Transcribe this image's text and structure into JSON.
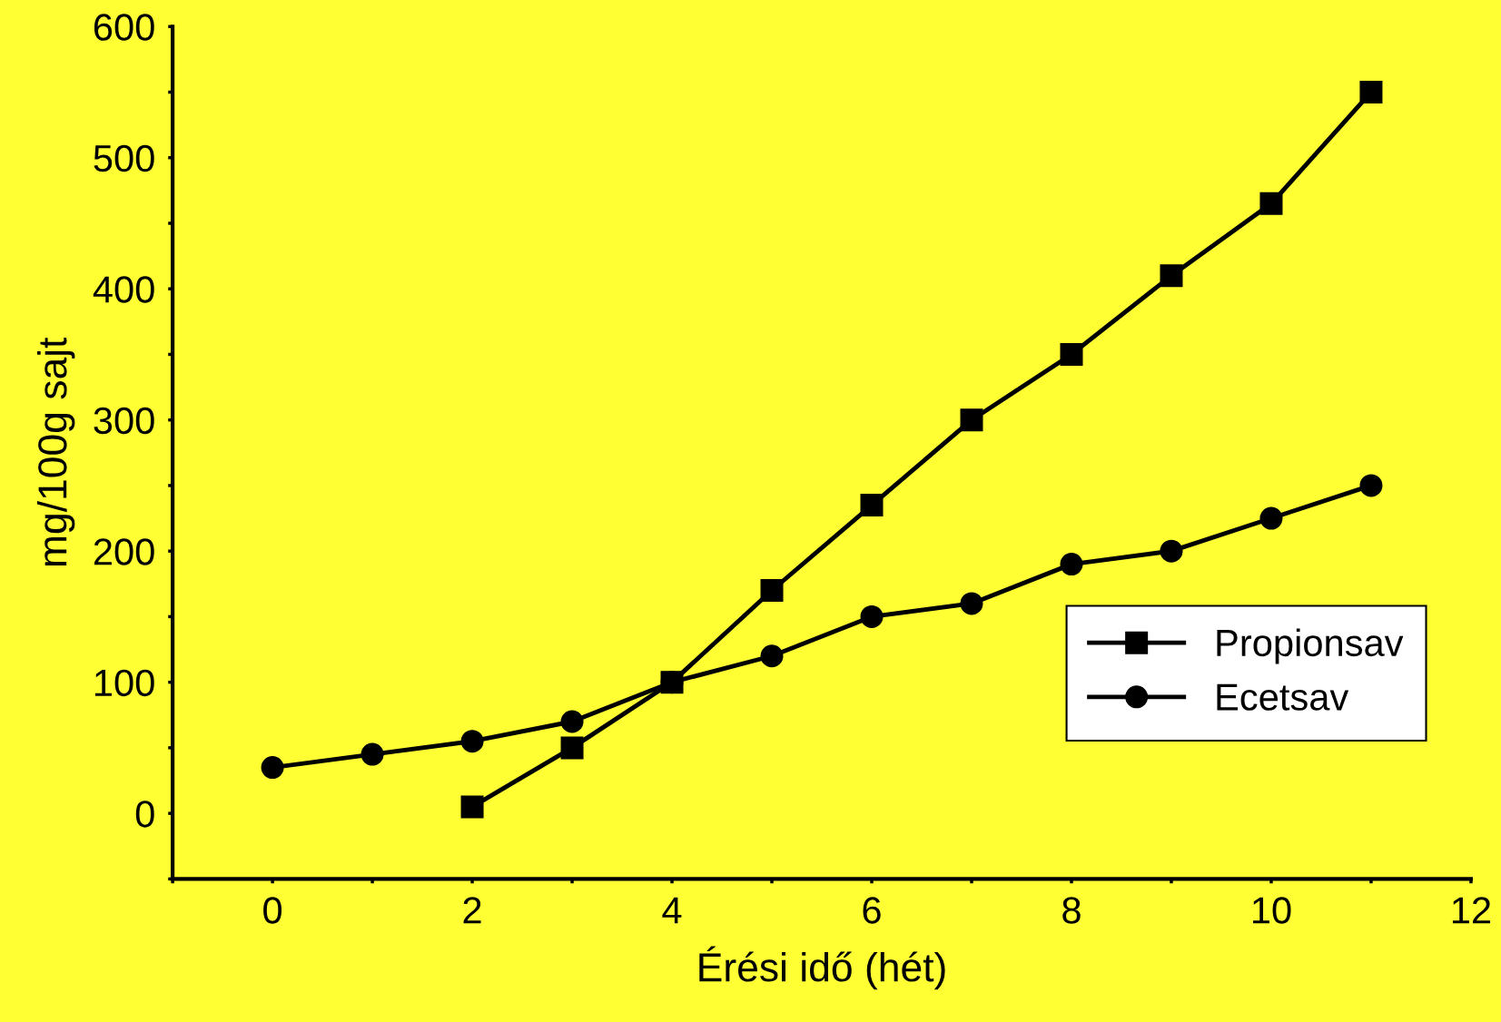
{
  "chart_data": {
    "type": "line",
    "xlabel": "Érési idő (hét)",
    "ylabel": "mg/100g sajt",
    "series": [
      {
        "name": "Propionsav",
        "color": "#000000",
        "marker": "square",
        "x": [
          2,
          3,
          4,
          5,
          6,
          7,
          8,
          9,
          10,
          11
        ],
        "values": [
          5,
          50,
          100,
          170,
          235,
          300,
          350,
          410,
          465,
          550
        ]
      },
      {
        "name": "Ecetsav",
        "color": "#000000",
        "marker": "circle",
        "x": [
          0,
          1,
          2,
          3,
          4,
          5,
          6,
          7,
          8,
          9,
          10,
          11
        ],
        "values": [
          35,
          45,
          55,
          70,
          100,
          120,
          150,
          160,
          190,
          200,
          225,
          250
        ]
      }
    ],
    "xlim": [
      -1,
      12
    ],
    "ylim": [
      -50,
      600
    ],
    "xticks": [
      {
        "value": -1,
        "label": null
      },
      0,
      {
        "value": 1,
        "label": null
      },
      2,
      {
        "value": 3,
        "label": null
      },
      4,
      {
        "value": 5,
        "label": null
      },
      6,
      {
        "value": 7,
        "label": null
      },
      8,
      {
        "value": 9,
        "label": null
      },
      10,
      {
        "value": 11,
        "label": null
      },
      12
    ],
    "yticks": [
      {
        "value": -50,
        "label": null
      },
      0,
      {
        "value": 50,
        "label": null
      },
      100,
      {
        "value": 150,
        "label": null
      },
      200,
      {
        "value": 250,
        "label": null
      },
      300,
      {
        "value": 350,
        "label": null
      },
      400,
      {
        "value": 450,
        "label": null
      },
      500,
      {
        "value": 550,
        "label": null
      },
      600
    ],
    "legend": "bottom right",
    "grid": false,
    "line_style": "solid"
  }
}
